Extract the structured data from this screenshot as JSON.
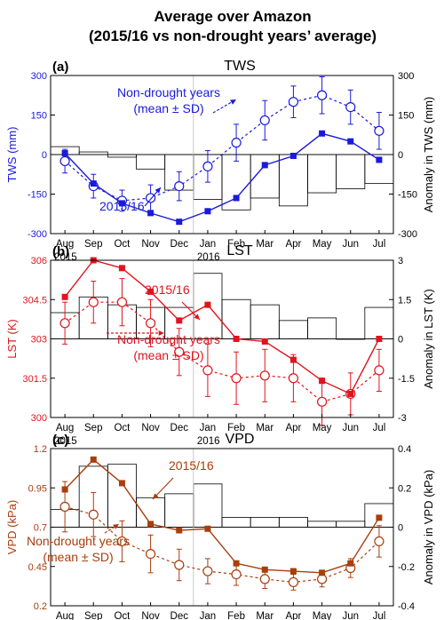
{
  "figure": {
    "title_line1": "Average over Amazon",
    "title_line2": "(2015/16 vs non-drought years’ average)"
  },
  "months": [
    "Aug",
    "Sep",
    "Oct",
    "Nov",
    "Dec",
    "Jan",
    "Feb",
    "Mar",
    "Apr",
    "May",
    "Jun",
    "Jul"
  ],
  "year_labels": {
    "first": "2015",
    "second": "2016"
  },
  "chart_data": [
    {
      "type": "line",
      "panel": "(a)",
      "title": "TWS",
      "color": "#1a1adc",
      "ylabel": "TWS (mm)",
      "ylim": [
        -300,
        300
      ],
      "yticks": [
        -300,
        -150,
        0,
        150,
        300
      ],
      "y2label": "Anomaly in TWS (mm)",
      "y2lim": [
        -300,
        300
      ],
      "y2ticks": [
        -300,
        -150,
        0,
        150,
        300
      ],
      "categories": [
        "Aug",
        "Sep",
        "Oct",
        "Nov",
        "Dec",
        "Jan",
        "Feb",
        "Mar",
        "Apr",
        "May",
        "Jun",
        "Jul"
      ],
      "series": [
        {
          "name": "2015/16",
          "values": [
            5,
            -110,
            -185,
            -222,
            -255,
            -215,
            -165,
            -40,
            -5,
            80,
            50,
            -20
          ]
        },
        {
          "name": "Non-drought years (mean ± SD)",
          "values": [
            -25,
            -120,
            -175,
            -165,
            -120,
            -45,
            45,
            130,
            200,
            225,
            180,
            90
          ],
          "sd": [
            45,
            45,
            40,
            50,
            55,
            60,
            70,
            75,
            60,
            70,
            65,
            70
          ]
        }
      ],
      "anomaly": [
        30,
        10,
        -10,
        -55,
        -135,
        -170,
        -210,
        -165,
        -195,
        -145,
        -130,
        -110
      ],
      "annotations": {
        "drought": "2015/16",
        "nondrought_line1": "Non-drought years",
        "nondrought_line2": "(mean ± SD)"
      }
    },
    {
      "type": "line",
      "panel": "(b)",
      "title": "LST",
      "color": "#e0141e",
      "ylabel": "LST (K)",
      "ylim": [
        300,
        306
      ],
      "yticks": [
        300,
        301.5,
        303,
        304.5,
        306
      ],
      "y2label": "Anomaly in LST (K)",
      "y2lim": [
        -3,
        3
      ],
      "y2ticks": [
        -3,
        -1.5,
        0,
        1.5,
        3
      ],
      "categories": [
        "Aug",
        "Sep",
        "Oct",
        "Nov",
        "Dec",
        "Jan",
        "Feb",
        "Mar",
        "Apr",
        "May",
        "Jun",
        "Jul"
      ],
      "series": [
        {
          "name": "2015/16",
          "values": [
            304.6,
            306.0,
            305.7,
            304.8,
            303.7,
            304.3,
            303.0,
            302.9,
            302.2,
            301.4,
            300.9,
            303.0
          ]
        },
        {
          "name": "Non-drought years (mean ± SD)",
          "values": [
            303.6,
            304.4,
            304.4,
            303.6,
            302.5,
            301.8,
            301.5,
            301.6,
            301.5,
            300.6,
            300.9,
            301.8
          ],
          "sd": [
            0.8,
            0.8,
            0.9,
            0.9,
            0.9,
            1.0,
            1.0,
            1.0,
            0.9,
            0.9,
            0.8,
            0.8
          ]
        }
      ],
      "anomaly": [
        1.0,
        1.6,
        1.3,
        1.2,
        1.2,
        2.5,
        1.5,
        1.3,
        0.7,
        0.8,
        0.0,
        1.2
      ],
      "annotations": {
        "drought": "2015/16",
        "nondrought_line1": "Non-drought years",
        "nondrought_line2": "(mean ± SD)"
      }
    },
    {
      "type": "line",
      "panel": "(c)",
      "title": "VPD",
      "color": "#a83e0e",
      "ylabel": "VPD (kPa)",
      "ylim": [
        0.2,
        1.2
      ],
      "yticks": [
        0.2,
        0.45,
        0.7,
        0.95,
        1.2
      ],
      "y2label": "Anomaly in VPD (kPa)",
      "y2lim": [
        -0.4,
        0.4
      ],
      "y2ticks": [
        -0.4,
        -0.2,
        0,
        0.2,
        0.4
      ],
      "categories": [
        "Aug",
        "Sep",
        "Oct",
        "Nov",
        "Dec",
        "Jan",
        "Feb",
        "Mar",
        "Apr",
        "May",
        "Jun",
        "Jul"
      ],
      "series": [
        {
          "name": "2015/16",
          "values": [
            0.94,
            1.13,
            0.98,
            0.72,
            0.68,
            0.69,
            0.47,
            0.43,
            0.42,
            0.41,
            0.47,
            0.76
          ]
        },
        {
          "name": "Non-drought years (mean ± SD)",
          "values": [
            0.83,
            0.78,
            0.61,
            0.53,
            0.46,
            0.42,
            0.4,
            0.37,
            0.35,
            0.37,
            0.44,
            0.61
          ],
          "sd": [
            0.16,
            0.14,
            0.13,
            0.12,
            0.1,
            0.08,
            0.07,
            0.06,
            0.05,
            0.05,
            0.06,
            0.1
          ]
        }
      ],
      "anomaly": [
        0.09,
        0.31,
        0.32,
        0.15,
        0.17,
        0.22,
        0.05,
        0.05,
        0.05,
        0.03,
        0.03,
        0.12
      ],
      "annotations": {
        "drought": "2015/16",
        "nondrought_line1": "Non-drought years",
        "nondrought_line2": "(mean ± SD)"
      }
    }
  ]
}
